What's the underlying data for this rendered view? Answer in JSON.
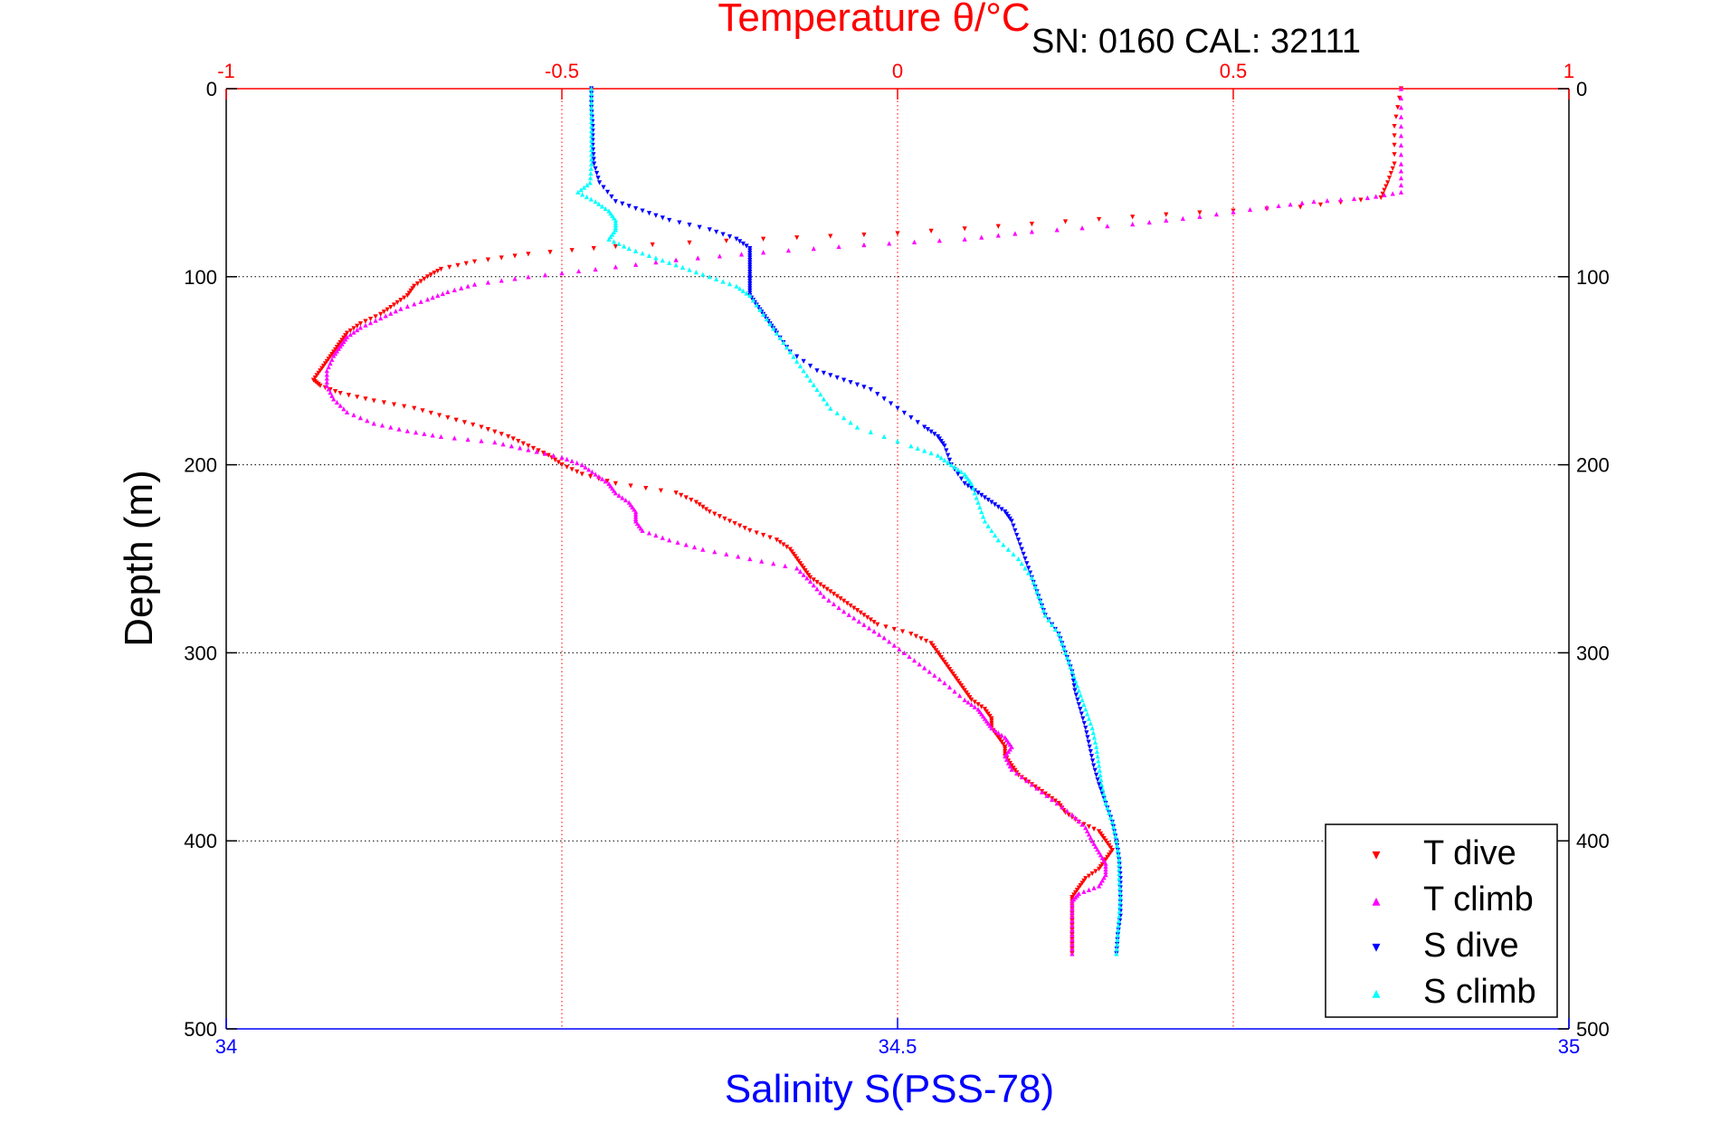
{
  "chart_data": {
    "type": "scatter",
    "title": "Temperature θ/°C",
    "annotation": "SN: 0160  CAL: 32111",
    "top_axis": {
      "label": "Temperature θ/°C",
      "range": [
        -1,
        1
      ],
      "ticks": [
        -1,
        -0.5,
        0,
        0.5,
        1
      ],
      "tick_labels": [
        "-1",
        "-0.5",
        "0",
        "0.5",
        "1"
      ],
      "color": "#ff0000"
    },
    "bottom_axis": {
      "label": "Salinity S(PSS-78)",
      "range": [
        34,
        35
      ],
      "ticks": [
        34,
        34.5,
        35
      ],
      "tick_labels": [
        "34",
        "34.5",
        "35"
      ],
      "color": "#0000ff"
    },
    "y_axis": {
      "label": "Depth (m)",
      "range": [
        0,
        500
      ],
      "reversed": true,
      "ticks": [
        0,
        100,
        200,
        300,
        400,
        500
      ],
      "tick_labels": [
        "0",
        "100",
        "200",
        "300",
        "400",
        "500"
      ]
    },
    "grid": true,
    "legend_position": "bottom-right",
    "series": [
      {
        "name": "T dive",
        "axis": "temperature",
        "color": "#ff0000",
        "marker": "triangle-down",
        "points": [
          [
            0.75,
            0
          ],
          [
            0.74,
            20
          ],
          [
            0.74,
            40
          ],
          [
            0.73,
            50
          ],
          [
            0.72,
            58
          ],
          [
            0.6,
            63
          ],
          [
            0.4,
            67
          ],
          [
            0.2,
            72
          ],
          [
            0,
            77
          ],
          [
            -0.2,
            80
          ],
          [
            -0.42,
            84
          ],
          [
            -0.55,
            88
          ],
          [
            -0.63,
            92
          ],
          [
            -0.68,
            96
          ],
          [
            -0.7,
            100
          ],
          [
            -0.72,
            105
          ],
          [
            -0.73,
            110
          ],
          [
            -0.75,
            115
          ],
          [
            -0.77,
            120
          ],
          [
            -0.8,
            125
          ],
          [
            -0.82,
            130
          ],
          [
            -0.83,
            135
          ],
          [
            -0.84,
            140
          ],
          [
            -0.85,
            145
          ],
          [
            -0.86,
            150
          ],
          [
            -0.87,
            155
          ],
          [
            -0.86,
            158
          ],
          [
            -0.83,
            162
          ],
          [
            -0.78,
            166
          ],
          [
            -0.72,
            170
          ],
          [
            -0.67,
            175
          ],
          [
            -0.62,
            180
          ],
          [
            -0.58,
            185
          ],
          [
            -0.55,
            190
          ],
          [
            -0.52,
            195
          ],
          [
            -0.5,
            200
          ],
          [
            -0.47,
            205
          ],
          [
            -0.42,
            210
          ],
          [
            -0.33,
            215
          ],
          [
            -0.3,
            220
          ],
          [
            -0.28,
            225
          ],
          [
            -0.25,
            230
          ],
          [
            -0.22,
            235
          ],
          [
            -0.18,
            240
          ],
          [
            -0.16,
            245
          ],
          [
            -0.15,
            250
          ],
          [
            -0.14,
            255
          ],
          [
            -0.13,
            260
          ],
          [
            -0.11,
            265
          ],
          [
            -0.09,
            270
          ],
          [
            -0.07,
            275
          ],
          [
            -0.05,
            280
          ],
          [
            -0.03,
            285
          ],
          [
            0.02,
            290
          ],
          [
            0.05,
            295
          ],
          [
            0.06,
            300
          ],
          [
            0.07,
            305
          ],
          [
            0.08,
            310
          ],
          [
            0.09,
            315
          ],
          [
            0.1,
            320
          ],
          [
            0.11,
            325
          ],
          [
            0.13,
            330
          ],
          [
            0.14,
            335
          ],
          [
            0.14,
            340
          ],
          [
            0.15,
            345
          ],
          [
            0.16,
            350
          ],
          [
            0.16,
            355
          ],
          [
            0.17,
            360
          ],
          [
            0.18,
            365
          ],
          [
            0.2,
            370
          ],
          [
            0.22,
            375
          ],
          [
            0.24,
            380
          ],
          [
            0.25,
            385
          ],
          [
            0.27,
            390
          ],
          [
            0.3,
            395
          ],
          [
            0.31,
            400
          ],
          [
            0.32,
            405
          ],
          [
            0.31,
            410
          ],
          [
            0.3,
            415
          ],
          [
            0.28,
            420
          ],
          [
            0.27,
            425
          ],
          [
            0.26,
            430
          ],
          [
            0.26,
            435
          ],
          [
            0.26,
            440
          ],
          [
            0.26,
            445
          ],
          [
            0.26,
            450
          ],
          [
            0.26,
            455
          ],
          [
            0.26,
            460
          ]
        ]
      },
      {
        "name": "T climb",
        "axis": "temperature",
        "color": "#ff00ff",
        "marker": "triangle-up",
        "points": [
          [
            0.75,
            0
          ],
          [
            0.75,
            20
          ],
          [
            0.75,
            40
          ],
          [
            0.75,
            55
          ],
          [
            0.7,
            58
          ],
          [
            0.62,
            60
          ],
          [
            0.55,
            63
          ],
          [
            0.45,
            68
          ],
          [
            0.35,
            72
          ],
          [
            0.2,
            76
          ],
          [
            0.1,
            80
          ],
          [
            -0.05,
            83
          ],
          [
            -0.2,
            87
          ],
          [
            -0.33,
            91
          ],
          [
            -0.45,
            96
          ],
          [
            -0.55,
            100
          ],
          [
            -0.63,
            104
          ],
          [
            -0.67,
            108
          ],
          [
            -0.7,
            112
          ],
          [
            -0.74,
            117
          ],
          [
            -0.77,
            122
          ],
          [
            -0.8,
            127
          ],
          [
            -0.82,
            132
          ],
          [
            -0.83,
            137
          ],
          [
            -0.84,
            142
          ],
          [
            -0.85,
            150
          ],
          [
            -0.85,
            158
          ],
          [
            -0.84,
            165
          ],
          [
            -0.82,
            172
          ],
          [
            -0.78,
            178
          ],
          [
            -0.73,
            182
          ],
          [
            -0.68,
            185
          ],
          [
            -0.6,
            188
          ],
          [
            -0.55,
            192
          ],
          [
            -0.5,
            196
          ],
          [
            -0.47,
            200
          ],
          [
            -0.45,
            205
          ],
          [
            -0.43,
            210
          ],
          [
            -0.42,
            215
          ],
          [
            -0.4,
            220
          ],
          [
            -0.39,
            225
          ],
          [
            -0.39,
            230
          ],
          [
            -0.38,
            235
          ],
          [
            -0.34,
            240
          ],
          [
            -0.29,
            245
          ],
          [
            -0.22,
            250
          ],
          [
            -0.15,
            255
          ],
          [
            -0.13,
            262
          ],
          [
            -0.11,
            270
          ],
          [
            -0.08,
            278
          ],
          [
            -0.05,
            285
          ],
          [
            -0.02,
            292
          ],
          [
            0.01,
            300
          ],
          [
            0.04,
            308
          ],
          [
            0.07,
            316
          ],
          [
            0.1,
            325
          ],
          [
            0.12,
            330
          ],
          [
            0.13,
            335
          ],
          [
            0.14,
            340
          ],
          [
            0.16,
            345
          ],
          [
            0.17,
            350
          ],
          [
            0.16,
            355
          ],
          [
            0.17,
            362
          ],
          [
            0.2,
            370
          ],
          [
            0.23,
            378
          ],
          [
            0.26,
            386
          ],
          [
            0.28,
            393
          ],
          [
            0.29,
            400
          ],
          [
            0.3,
            406
          ],
          [
            0.31,
            412
          ],
          [
            0.31,
            418
          ],
          [
            0.3,
            424
          ],
          [
            0.27,
            428
          ],
          [
            0.26,
            432
          ],
          [
            0.26,
            440
          ],
          [
            0.26,
            450
          ],
          [
            0.26,
            460
          ]
        ]
      },
      {
        "name": "S dive",
        "axis": "salinity",
        "color": "#0000ff",
        "marker": "triangle-down",
        "points": [
          [
            34.272,
            0
          ],
          [
            34.272,
            10
          ],
          [
            34.273,
            20
          ],
          [
            34.273,
            30
          ],
          [
            34.274,
            40
          ],
          [
            34.278,
            50
          ],
          [
            34.29,
            60
          ],
          [
            34.31,
            65
          ],
          [
            34.33,
            70
          ],
          [
            34.36,
            75
          ],
          [
            34.38,
            80
          ],
          [
            34.39,
            85
          ],
          [
            34.39,
            90
          ],
          [
            34.39,
            95
          ],
          [
            34.39,
            100
          ],
          [
            34.39,
            105
          ],
          [
            34.39,
            110
          ],
          [
            34.395,
            115
          ],
          [
            34.4,
            120
          ],
          [
            34.405,
            125
          ],
          [
            34.41,
            130
          ],
          [
            34.42,
            140
          ],
          [
            34.44,
            150
          ],
          [
            34.46,
            155
          ],
          [
            34.48,
            160
          ],
          [
            34.5,
            170
          ],
          [
            34.52,
            180
          ],
          [
            34.53,
            185
          ],
          [
            34.535,
            190
          ],
          [
            34.54,
            200
          ],
          [
            34.55,
            210
          ],
          [
            34.56,
            215
          ],
          [
            34.57,
            220
          ],
          [
            34.58,
            225
          ],
          [
            34.585,
            230
          ],
          [
            34.59,
            240
          ],
          [
            34.595,
            250
          ],
          [
            34.6,
            260
          ],
          [
            34.605,
            270
          ],
          [
            34.61,
            280
          ],
          [
            34.62,
            290
          ],
          [
            34.625,
            300
          ],
          [
            34.63,
            310
          ],
          [
            34.632,
            320
          ],
          [
            34.636,
            330
          ],
          [
            34.64,
            340
          ],
          [
            34.643,
            350
          ],
          [
            34.646,
            360
          ],
          [
            34.65,
            370
          ],
          [
            34.655,
            380
          ],
          [
            34.66,
            390
          ],
          [
            34.663,
            400
          ],
          [
            34.665,
            410
          ],
          [
            34.666,
            420
          ],
          [
            34.666,
            430
          ],
          [
            34.666,
            440
          ],
          [
            34.664,
            450
          ],
          [
            34.663,
            460
          ]
        ]
      },
      {
        "name": "S climb",
        "axis": "salinity",
        "color": "#00ffff",
        "marker": "triangle-up",
        "points": [
          [
            34.272,
            0
          ],
          [
            34.272,
            10
          ],
          [
            34.272,
            20
          ],
          [
            34.272,
            30
          ],
          [
            34.272,
            40
          ],
          [
            34.271,
            50
          ],
          [
            34.262,
            55
          ],
          [
            34.275,
            60
          ],
          [
            34.285,
            65
          ],
          [
            34.29,
            70
          ],
          [
            34.29,
            75
          ],
          [
            34.285,
            80
          ],
          [
            34.3,
            85
          ],
          [
            34.32,
            90
          ],
          [
            34.34,
            95
          ],
          [
            34.36,
            100
          ],
          [
            34.38,
            105
          ],
          [
            34.39,
            110
          ],
          [
            34.4,
            120
          ],
          [
            34.41,
            130
          ],
          [
            34.42,
            140
          ],
          [
            34.43,
            150
          ],
          [
            34.44,
            160
          ],
          [
            34.45,
            170
          ],
          [
            34.47,
            180
          ],
          [
            34.51,
            190
          ],
          [
            34.53,
            195
          ],
          [
            34.54,
            200
          ],
          [
            34.55,
            205
          ],
          [
            34.555,
            210
          ],
          [
            34.56,
            220
          ],
          [
            34.565,
            230
          ],
          [
            34.575,
            240
          ],
          [
            34.59,
            250
          ],
          [
            34.6,
            260
          ],
          [
            34.605,
            270
          ],
          [
            34.61,
            280
          ],
          [
            34.62,
            290
          ],
          [
            34.625,
            300
          ],
          [
            34.63,
            310
          ],
          [
            34.635,
            320
          ],
          [
            34.64,
            330
          ],
          [
            34.645,
            340
          ],
          [
            34.648,
            350
          ],
          [
            34.65,
            360
          ],
          [
            34.652,
            370
          ],
          [
            34.655,
            380
          ],
          [
            34.66,
            390
          ],
          [
            34.663,
            400
          ],
          [
            34.665,
            410
          ],
          [
            34.665,
            420
          ],
          [
            34.666,
            430
          ],
          [
            34.665,
            440
          ],
          [
            34.664,
            450
          ],
          [
            34.663,
            460
          ]
        ]
      }
    ]
  },
  "legend": {
    "items": [
      {
        "label": "T dive",
        "color": "#ff0000",
        "marker": "▾"
      },
      {
        "label": "T climb",
        "color": "#ff00ff",
        "marker": "▴"
      },
      {
        "label": "S dive",
        "color": "#0000ff",
        "marker": "▾"
      },
      {
        "label": "S climb",
        "color": "#00ffff",
        "marker": "▴"
      }
    ]
  }
}
